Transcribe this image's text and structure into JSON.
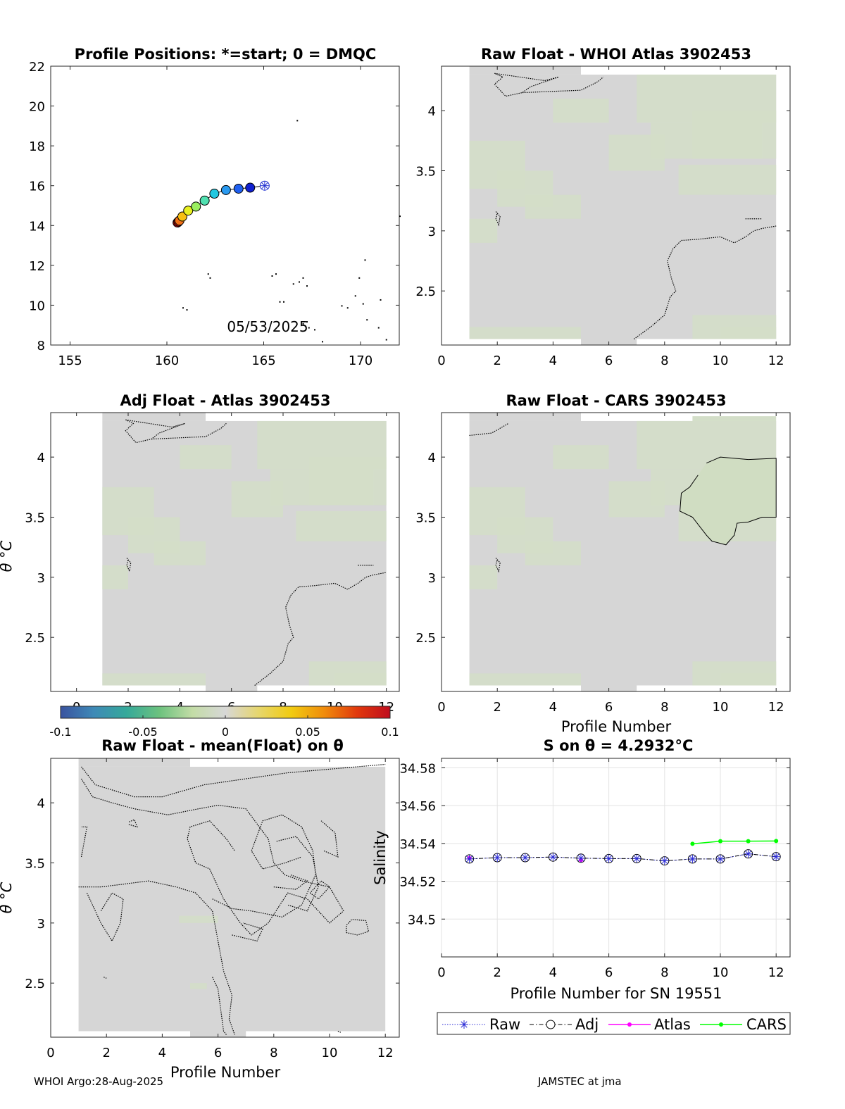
{
  "footer": {
    "left": "WHOI Argo:28-Aug-2025",
    "right": "JAMSTEC at jma"
  },
  "colorbar": {
    "ticks": [
      "-0.1",
      "-0.05",
      "0",
      "0.05",
      "0.1"
    ],
    "range": [
      -0.1,
      0.1
    ],
    "colors": [
      "#3a539f",
      "#3e89b7",
      "#35a99a",
      "#6cc27e",
      "#c3dca6",
      "#d7d7d7",
      "#e6d66e",
      "#f1cb10",
      "#f08c0c",
      "#e1380c",
      "#bf0d1e"
    ]
  },
  "colors": {
    "panel_bg": "#d6d6d6",
    "panel_green": "#d3dec8",
    "raw": "#2b2bd6",
    "adj": "#000000",
    "atlas": "#ff00ff",
    "cars": "#00ff00"
  },
  "chart_data": [
    {
      "id": "positions",
      "type": "scatter",
      "title": "Profile Positions: *=start; 0 = DMQC",
      "xlim": [
        154,
        172
      ],
      "ylim": [
        8,
        22
      ],
      "xticks": [
        "155",
        "160",
        "165",
        "170"
      ],
      "yticks": [
        "8",
        "10",
        "12",
        "14",
        "16",
        "18",
        "20",
        "22"
      ],
      "annotation": "05/53/2025",
      "lon": [
        165.05,
        164.3,
        163.7,
        163.05,
        162.45,
        161.95,
        161.5,
        161.1,
        160.8,
        160.65,
        160.6,
        160.55
      ],
      "lat": [
        16.0,
        15.9,
        15.85,
        15.78,
        15.6,
        15.25,
        14.95,
        14.75,
        14.45,
        14.25,
        14.2,
        14.15
      ]
    },
    {
      "id": "raw_whoi",
      "type": "heatmap",
      "title": "Raw Float - WHOI Atlas  3902453",
      "xlim": [
        0,
        12.5
      ],
      "ylim": [
        2.05,
        4.37
      ],
      "xticks": [
        "0",
        "2",
        "4",
        "6",
        "8",
        "10",
        "12"
      ],
      "yticks": [
        "2.5",
        "3",
        "3.5",
        "4"
      ]
    },
    {
      "id": "adj_atlas",
      "type": "heatmap",
      "title": "Adj Float - Atlas  3902453",
      "ylabel": "θ °C",
      "xlim": [
        -1,
        12.5
      ],
      "ylim": [
        2.05,
        4.37
      ],
      "xticks": [
        "0",
        "2",
        "4",
        "6",
        "8",
        "10",
        "12"
      ],
      "yticks": [
        "2.5",
        "3",
        "3.5",
        "4"
      ]
    },
    {
      "id": "raw_cars",
      "type": "heatmap",
      "title": "Raw Float - CARS  3902453",
      "xlabel": "Profile Number",
      "xlim": [
        0,
        12.5
      ],
      "ylim": [
        2.05,
        4.37
      ],
      "xticks": [
        "0",
        "2",
        "4",
        "6",
        "8",
        "10",
        "12"
      ],
      "yticks": [
        "2.5",
        "3",
        "3.5",
        "4"
      ]
    },
    {
      "id": "raw_mean",
      "type": "heatmap",
      "title": "Raw Float - mean(Float) on θ",
      "xlabel": "Profile Number",
      "ylabel": "θ °C",
      "xlim": [
        0,
        12.5
      ],
      "ylim": [
        2.05,
        4.37
      ],
      "xticks": [
        "0",
        "2",
        "4",
        "6",
        "8",
        "10",
        "12"
      ],
      "yticks": [
        "2.5",
        "3",
        "3.5",
        "4"
      ]
    },
    {
      "id": "salinity",
      "type": "line",
      "title": "S on θ = 4.2932°C",
      "xlabel": "Profile Number for SN 19551",
      "ylabel": "Salinity",
      "xlim": [
        0,
        12.5
      ],
      "ylim": [
        34.48,
        34.585
      ],
      "xticks": [
        "0",
        "2",
        "4",
        "6",
        "8",
        "10",
        "12"
      ],
      "yticks": [
        "34.5",
        "34.52",
        "34.54",
        "34.56",
        "34.58"
      ],
      "series": [
        {
          "name": "Raw",
          "x": [
            1,
            2,
            3,
            4,
            5,
            6,
            7,
            8,
            9,
            10,
            11,
            12
          ],
          "y": [
            34.5318,
            34.5325,
            34.5325,
            34.5328,
            34.5322,
            34.532,
            34.532,
            34.5308,
            34.5318,
            34.5318,
            34.5345,
            34.533
          ]
        },
        {
          "name": "Adj",
          "x": [
            1,
            2,
            3,
            4,
            5,
            6,
            7,
            8,
            9,
            10,
            11,
            12
          ],
          "y": [
            34.5318,
            34.5325,
            34.5325,
            34.5328,
            34.5322,
            34.532,
            34.532,
            34.5308,
            34.5318,
            34.5318,
            34.5345,
            34.533
          ]
        },
        {
          "name": "Atlas",
          "x": [
            1,
            5
          ],
          "y": [
            34.5322,
            34.5312
          ]
        },
        {
          "name": "CARS",
          "x": [
            9,
            10,
            11,
            12
          ],
          "y": [
            34.5398,
            34.5412,
            34.5412,
            34.5413
          ]
        }
      ]
    }
  ]
}
